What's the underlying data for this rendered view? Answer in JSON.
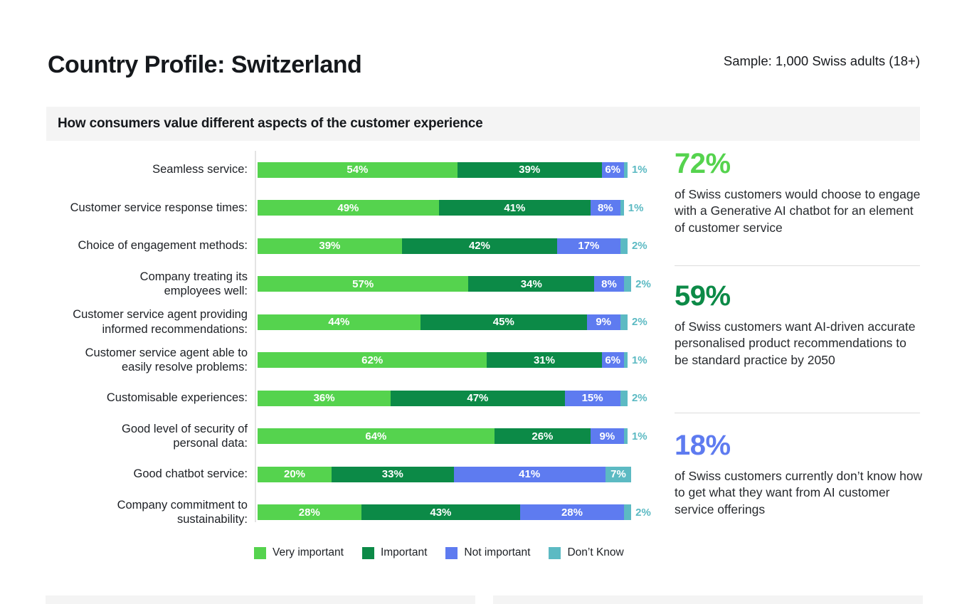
{
  "page": {
    "title": "Country Profile: Switzerland",
    "sample": "Sample: 1,000 Swiss adults (18+)",
    "section_header": "How consumers value different aspects of the customer experience"
  },
  "colors": {
    "very_important": "#55d34e",
    "important": "#0c8a47",
    "not_important": "#5e7bf0",
    "dont_know": "#5cbac3"
  },
  "chart_data": {
    "type": "bar",
    "orientation": "horizontal",
    "stacked": true,
    "unit": "%",
    "xlim": [
      0,
      100
    ],
    "legend_position": "bottom",
    "categories": [
      "Seamless service:",
      "Customer service response times:",
      "Choice of engagement methods:",
      "Company treating its\nemployees well:",
      "Customer service agent providing\ninformed recommendations:",
      "Customer service agent able to\neasily resolve problems:",
      "Customisable experiences:",
      "Good level of security of\npersonal data:",
      "Good chatbot service:",
      "Company commitment to\nsustainability:"
    ],
    "series": [
      {
        "name": "Very important",
        "color_key": "very_important",
        "values": [
          54,
          49,
          39,
          57,
          44,
          62,
          36,
          64,
          20,
          28
        ]
      },
      {
        "name": "Important",
        "color_key": "important",
        "values": [
          39,
          41,
          42,
          34,
          45,
          31,
          47,
          26,
          33,
          43
        ]
      },
      {
        "name": "Not important",
        "color_key": "not_important",
        "values": [
          6,
          8,
          17,
          8,
          9,
          6,
          15,
          9,
          41,
          28
        ]
      },
      {
        "name": "Don’t Know",
        "color_key": "dont_know",
        "values": [
          1,
          1,
          2,
          2,
          2,
          1,
          2,
          1,
          7,
          2
        ]
      }
    ]
  },
  "stats": [
    {
      "value": "72%",
      "color": "#55d34e",
      "text": "of Swiss customers would choose to engage with a Generative AI chatbot for an element of customer service"
    },
    {
      "value": "59%",
      "color": "#0c8a47",
      "text": "of Swiss customers want AI-driven accurate personalised product recommendations to be standard practice by 2050"
    },
    {
      "value": "18%",
      "color": "#5e7bf0",
      "text": "of Swiss customers currently don’t know how to get what they want from AI customer service offerings"
    }
  ]
}
